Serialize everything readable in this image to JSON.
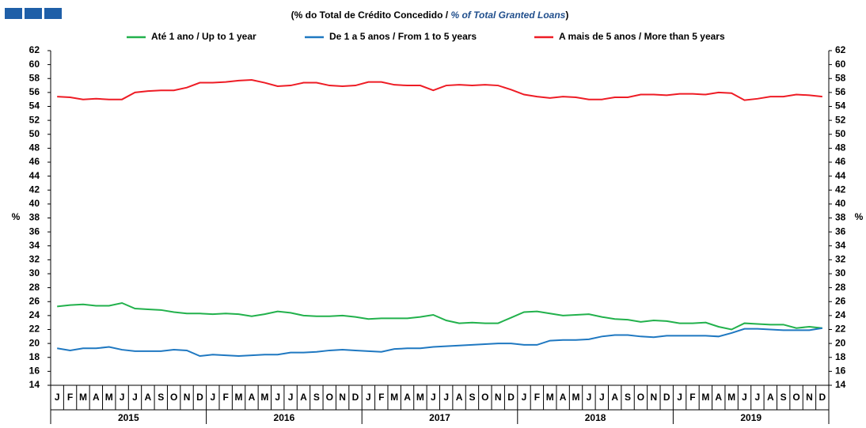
{
  "chart_data": {
    "type": "line",
    "title": [
      "(% do Total de Crédito Concedido  / ",
      "% of Total Granted Loans",
      ")"
    ],
    "y_label": "%",
    "categories": [
      "J",
      "F",
      "M",
      "A",
      "M",
      "J",
      "J",
      "A",
      "S",
      "O",
      "N",
      "D",
      "J",
      "F",
      "M",
      "A",
      "M",
      "J",
      "J",
      "A",
      "S",
      "O",
      "N",
      "D",
      "J",
      "F",
      "M",
      "A",
      "M",
      "J",
      "J",
      "A",
      "S",
      "O",
      "N",
      "D",
      "J",
      "F",
      "M",
      "A",
      "M",
      "J",
      "J",
      "A",
      "S",
      "O",
      "N",
      "D",
      "J",
      "F",
      "M",
      "A",
      "M",
      "J",
      "J",
      "A",
      "S",
      "O",
      "N",
      "D"
    ],
    "years": [
      "2015",
      "2016",
      "2017",
      "2018",
      "2019"
    ],
    "ylim": [
      14,
      62
    ],
    "yticks": [
      14,
      16,
      18,
      20,
      22,
      24,
      26,
      28,
      30,
      32,
      34,
      36,
      38,
      40,
      42,
      44,
      46,
      48,
      50,
      52,
      54,
      56,
      58,
      60,
      62
    ],
    "legend": "top",
    "series": [
      {
        "name": "Até 1 ano / Up to 1 year",
        "color": "#22b14c",
        "values": [
          25.3,
          25.5,
          25.6,
          25.4,
          25.4,
          25.8,
          25.0,
          24.9,
          24.8,
          24.5,
          24.3,
          24.3,
          24.2,
          24.3,
          24.2,
          23.9,
          24.2,
          24.6,
          24.4,
          24.0,
          23.9,
          23.9,
          24.0,
          23.8,
          23.5,
          23.6,
          23.6,
          23.6,
          23.8,
          24.1,
          23.3,
          22.9,
          23.0,
          22.9,
          22.9,
          23.7,
          24.5,
          24.6,
          24.3,
          24.0,
          24.1,
          24.2,
          23.8,
          23.5,
          23.4,
          23.1,
          23.3,
          23.2,
          22.9,
          22.9,
          23.0,
          22.4,
          22.0,
          22.9,
          22.8,
          22.7,
          22.7,
          22.2,
          22.4,
          22.2
        ]
      },
      {
        "name": "De 1 a 5 anos / From 1 to 5 years",
        "color": "#1f78c1",
        "values": [
          19.3,
          19.0,
          19.3,
          19.3,
          19.5,
          19.1,
          18.9,
          18.9,
          18.9,
          19.1,
          19.0,
          18.2,
          18.4,
          18.3,
          18.2,
          18.3,
          18.4,
          18.4,
          18.7,
          18.7,
          18.8,
          19.0,
          19.1,
          19.0,
          18.9,
          18.8,
          19.2,
          19.3,
          19.3,
          19.5,
          19.6,
          19.7,
          19.8,
          19.9,
          20.0,
          20.0,
          19.8,
          19.8,
          20.4,
          20.5,
          20.5,
          20.6,
          21.0,
          21.2,
          21.2,
          21.0,
          20.9,
          21.1,
          21.1,
          21.1,
          21.1,
          21.0,
          21.5,
          22.1,
          22.1,
          22.0,
          21.9,
          21.9,
          21.9,
          22.2
        ]
      },
      {
        "name": "A mais de 5 anos / More than 5 years",
        "color": "#ee1c25",
        "values": [
          55.4,
          55.3,
          55.0,
          55.1,
          55.0,
          55.0,
          56.0,
          56.2,
          56.3,
          56.3,
          56.7,
          57.4,
          57.4,
          57.5,
          57.7,
          57.8,
          57.4,
          56.9,
          57.0,
          57.4,
          57.4,
          57.0,
          56.9,
          57.0,
          57.5,
          57.5,
          57.1,
          57.0,
          57.0,
          56.3,
          57.0,
          57.1,
          57.0,
          57.1,
          57.0,
          56.4,
          55.7,
          55.4,
          55.2,
          55.4,
          55.3,
          55.0,
          55.0,
          55.3,
          55.3,
          55.7,
          55.7,
          55.6,
          55.8,
          55.8,
          55.7,
          56.0,
          55.9,
          54.9,
          55.1,
          55.4,
          55.4,
          55.7,
          55.6,
          55.4
        ]
      }
    ]
  }
}
